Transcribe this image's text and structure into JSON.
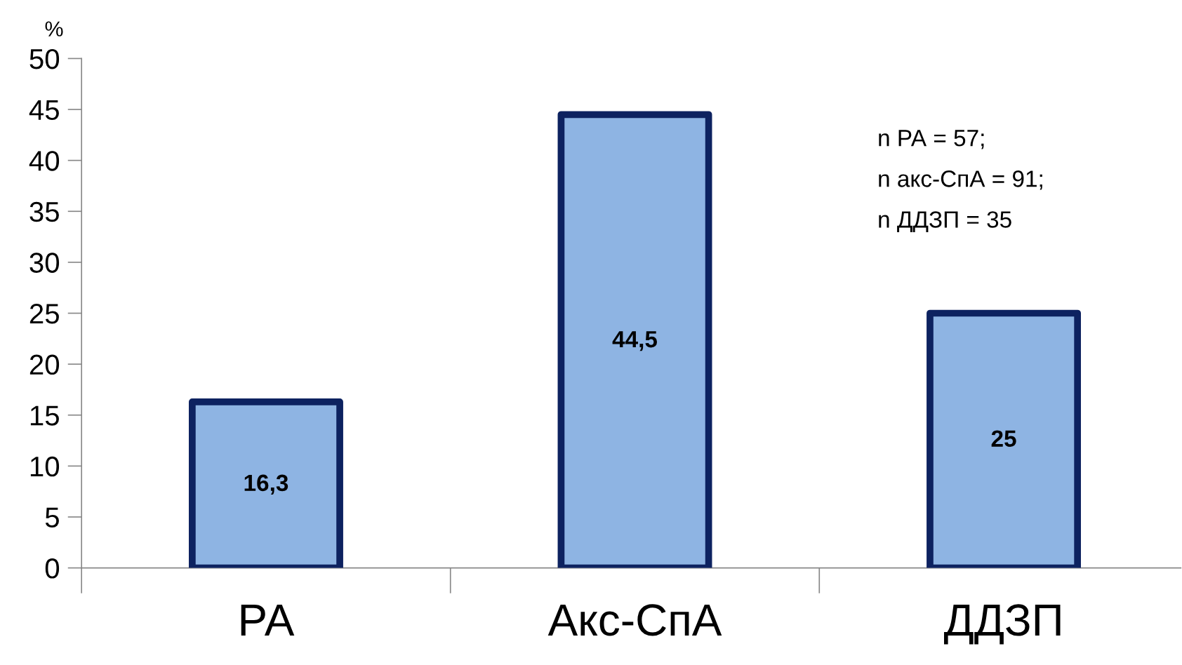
{
  "chart_data": {
    "type": "bar",
    "ylabel": "%",
    "categories": [
      "РА",
      "Акс-СпА",
      "ДДЗП"
    ],
    "series": [
      {
        "color": "#8eb4e3",
        "values": [
          16.3,
          44.5,
          25
        ],
        "value_labels": [
          "16,3",
          "44,5",
          "25"
        ]
      }
    ],
    "ylim": [
      0,
      50
    ],
    "yticks": [
      0,
      5,
      10,
      15,
      20,
      25,
      30,
      35,
      40,
      45,
      50
    ],
    "grid": false,
    "legend": false,
    "annotations": [
      "n РА = 57;",
      "n акс-СпА = 91;",
      "n ДДЗП = 35"
    ]
  }
}
